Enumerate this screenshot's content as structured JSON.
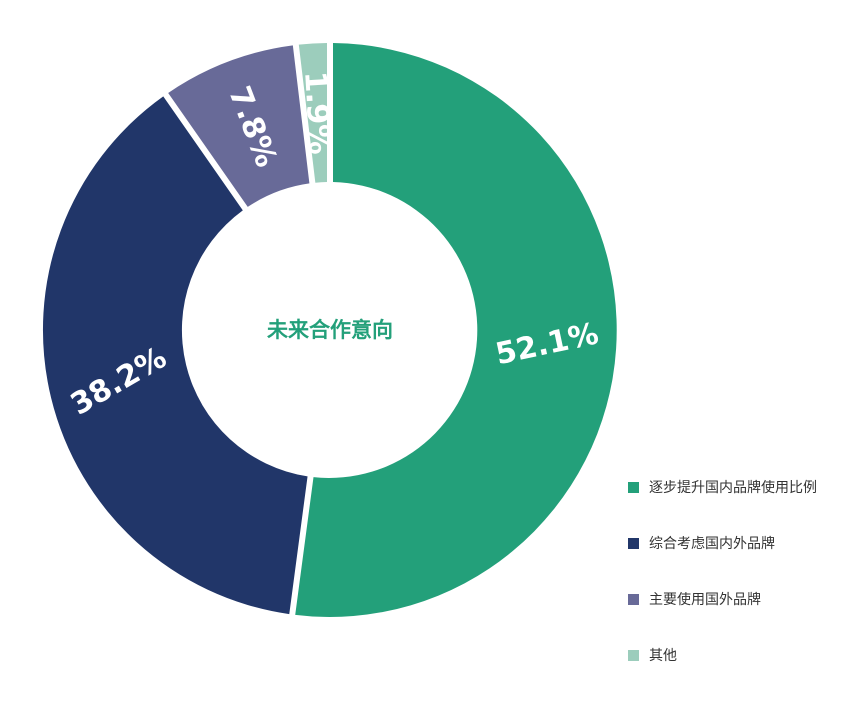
{
  "chart_data": {
    "type": "pie",
    "title": "未来合作意向",
    "categories": [
      "逐步提升国内品牌使用比例",
      "综合考虑国内外品牌",
      "主要使用国外品牌",
      "其他"
    ],
    "values": [
      52.1,
      38.2,
      7.8,
      1.9
    ],
    "value_labels": [
      "52.1%",
      "38.2%",
      "7.8%",
      "1.9%"
    ],
    "colors": [
      "#23a07a",
      "#213669",
      "#686a98",
      "#9ccdbc"
    ],
    "center_label_color": "#23a07a",
    "legend_position": "bottom-right",
    "donut": true
  }
}
